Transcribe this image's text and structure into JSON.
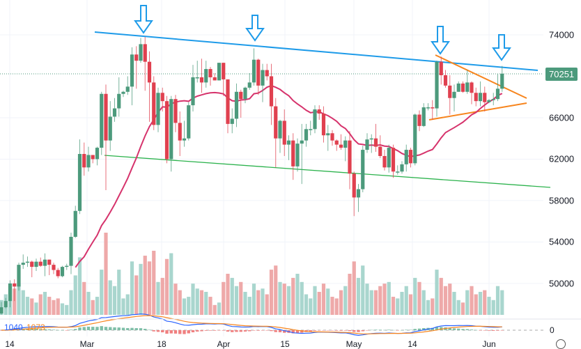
{
  "chart_data": {
    "type": "candlestick",
    "title": "",
    "colors": {
      "up": "#4c9a7c",
      "down": "#e0404f",
      "up_vol": "#a9d6ce",
      "down_vol": "#eea9a9",
      "ma": "#d6336c",
      "trend_top": "#1e9be9",
      "trend_bottom": "#2bb24c",
      "triangle": "#f7851e",
      "macd": "#2962ff",
      "signal": "#f7851e"
    },
    "price_axis": {
      "ticks": [
        "74000",
        "66000",
        "62000",
        "58000",
        "54000",
        "50000"
      ],
      "range": [
        46000,
        76500
      ]
    },
    "last_price": "70251",
    "date_ticks": [
      "14",
      "Mar",
      "18",
      "Apr",
      "15",
      "May",
      "14",
      "Jun"
    ],
    "dates_range": [
      "2024-02-10",
      "2024-06-04"
    ],
    "ma_period": 20,
    "macd": {
      "macd_label": "1040",
      "signal_label": "1073",
      "zero_label": "0"
    },
    "ohlc": [
      [
        47.1,
        48.2,
        47.0,
        47.7
      ],
      [
        47.7,
        48.6,
        47.6,
        48.3
      ],
      [
        48.3,
        50.3,
        47.7,
        50.0
      ],
      [
        50.0,
        50.4,
        48.3,
        49.7
      ],
      [
        49.7,
        52.0,
        49.3,
        51.8
      ],
      [
        51.8,
        52.8,
        51.4,
        52.0
      ],
      [
        52.0,
        52.6,
        51.6,
        52.1
      ],
      [
        52.1,
        52.2,
        50.6,
        51.6
      ],
      [
        51.6,
        52.4,
        51.2,
        52.1
      ],
      [
        52.1,
        52.5,
        51.6,
        51.7
      ],
      [
        51.7,
        52.9,
        50.7,
        52.3
      ],
      [
        52.3,
        52.3,
        50.8,
        51.8
      ],
      [
        51.8,
        52.0,
        50.9,
        51.3
      ],
      [
        51.3,
        51.5,
        50.5,
        50.7
      ],
      [
        50.7,
        51.7,
        50.6,
        51.6
      ],
      [
        51.6,
        51.9,
        51.3,
        51.7
      ],
      [
        51.7,
        54.9,
        50.9,
        54.5
      ],
      [
        54.5,
        57.5,
        54.4,
        57.0
      ],
      [
        57.0,
        63.9,
        56.7,
        62.5
      ],
      [
        62.5,
        63.6,
        60.4,
        61.2
      ],
      [
        61.2,
        63.2,
        60.8,
        62.4
      ],
      [
        62.4,
        62.4,
        61.6,
        62.0
      ],
      [
        62.0,
        63.2,
        61.4,
        63.1
      ],
      [
        63.1,
        68.5,
        62.4,
        68.3
      ],
      [
        68.3,
        69.2,
        59.0,
        63.8
      ],
      [
        63.8,
        67.6,
        62.8,
        66.1
      ],
      [
        66.1,
        67.9,
        65.6,
        66.9
      ],
      [
        66.9,
        69.9,
        66.1,
        68.3
      ],
      [
        68.3,
        68.6,
        68.0,
        68.5
      ],
      [
        68.5,
        70.0,
        68.2,
        69.0
      ],
      [
        69.0,
        72.8,
        67.2,
        72.1
      ],
      [
        72.1,
        72.9,
        68.8,
        71.5
      ],
      [
        71.5,
        73.7,
        71.3,
        73.1
      ],
      [
        73.1,
        73.8,
        68.6,
        71.4
      ],
      [
        71.4,
        72.4,
        65.6,
        69.4
      ],
      [
        69.4,
        70.0,
        64.8,
        65.3
      ],
      [
        65.3,
        68.9,
        64.6,
        68.4
      ],
      [
        68.4,
        68.9,
        66.6,
        67.6
      ],
      [
        67.6,
        68.1,
        61.6,
        62.0
      ],
      [
        62.0,
        68.1,
        60.8,
        67.8
      ],
      [
        67.8,
        68.2,
        64.6,
        65.5
      ],
      [
        65.5,
        66.6,
        62.3,
        63.8
      ],
      [
        63.8,
        65.7,
        63.2,
        64.0
      ],
      [
        64.0,
        67.5,
        63.8,
        67.2
      ],
      [
        67.2,
        71.1,
        66.6,
        69.9
      ],
      [
        69.9,
        71.5,
        69.4,
        69.9
      ],
      [
        69.9,
        71.7,
        68.4,
        69.4
      ],
      [
        69.4,
        71.5,
        68.9,
        70.7
      ],
      [
        70.7,
        70.9,
        69.1,
        69.9
      ],
      [
        69.9,
        70.3,
        69.6,
        69.6
      ],
      [
        69.6,
        71.3,
        69.6,
        71.3
      ],
      [
        71.3,
        71.3,
        68.1,
        69.7
      ],
      [
        69.7,
        69.7,
        64.5,
        65.4
      ],
      [
        65.4,
        66.9,
        64.5,
        65.9
      ],
      [
        65.9,
        69.3,
        65.1,
        68.5
      ],
      [
        68.5,
        68.7,
        66.0,
        67.8
      ],
      [
        67.8,
        69.0,
        67.4,
        68.9
      ],
      [
        68.9,
        70.3,
        68.7,
        69.4
      ],
      [
        69.4,
        72.7,
        69.1,
        71.6
      ],
      [
        71.6,
        71.7,
        68.2,
        69.1
      ],
      [
        69.1,
        71.2,
        67.5,
        70.6
      ],
      [
        70.6,
        71.2,
        69.6,
        70.0
      ],
      [
        70.0,
        71.2,
        65.3,
        67.1
      ],
      [
        67.1,
        67.9,
        61.2,
        64.0
      ],
      [
        64.0,
        65.8,
        62.6,
        65.7
      ],
      [
        65.7,
        66.8,
        62.3,
        63.4
      ],
      [
        63.4,
        64.3,
        61.9,
        63.8
      ],
      [
        63.8,
        64.5,
        60.0,
        61.3
      ],
      [
        61.3,
        64.0,
        60.8,
        63.5
      ],
      [
        63.5,
        65.4,
        59.6,
        63.8
      ],
      [
        63.8,
        65.4,
        63.2,
        64.9
      ],
      [
        64.9,
        65.7,
        64.3,
        64.9
      ],
      [
        64.9,
        67.2,
        64.5,
        66.8
      ],
      [
        66.8,
        67.2,
        65.8,
        66.4
      ],
      [
        66.4,
        67.1,
        63.6,
        64.3
      ],
      [
        64.3,
        65.3,
        62.8,
        64.5
      ],
      [
        64.5,
        64.8,
        63.3,
        63.8
      ],
      [
        63.8,
        63.9,
        62.8,
        63.4
      ],
      [
        63.4,
        64.4,
        62.9,
        63.1
      ],
      [
        63.1,
        64.2,
        61.8,
        63.8
      ],
      [
        63.8,
        64.7,
        59.1,
        60.6
      ],
      [
        60.6,
        60.8,
        56.5,
        58.3
      ],
      [
        58.3,
        59.6,
        56.9,
        59.1
      ],
      [
        59.1,
        63.3,
        58.8,
        62.9
      ],
      [
        62.9,
        64.5,
        62.6,
        63.9
      ],
      [
        63.9,
        64.4,
        62.6,
        64.0
      ],
      [
        64.0,
        65.4,
        62.7,
        63.2
      ],
      [
        63.2,
        64.3,
        62.1,
        62.3
      ],
      [
        62.3,
        62.9,
        60.9,
        61.2
      ],
      [
        61.2,
        63.4,
        60.7,
        63.1
      ],
      [
        63.1,
        63.4,
        60.2,
        60.8
      ],
      [
        60.8,
        61.4,
        60.5,
        60.8
      ],
      [
        60.8,
        61.8,
        60.6,
        61.5
      ],
      [
        61.5,
        63.4,
        60.8,
        62.9
      ],
      [
        62.9,
        63.1,
        61.2,
        61.6
      ],
      [
        61.6,
        66.4,
        61.4,
        66.3
      ],
      [
        66.3,
        66.7,
        64.7,
        65.2
      ],
      [
        65.2,
        67.4,
        65.1,
        67.0
      ],
      [
        67.0,
        67.4,
        66.7,
        67.0
      ],
      [
        67.0,
        67.7,
        65.8,
        66.9
      ],
      [
        66.9,
        71.5,
        66.1,
        71.4
      ],
      [
        71.4,
        71.9,
        69.2,
        70.1
      ],
      [
        70.1,
        70.6,
        68.9,
        69.1
      ],
      [
        69.1,
        70.1,
        66.3,
        67.9
      ],
      [
        67.9,
        69.2,
        66.6,
        68.5
      ],
      [
        68.5,
        69.5,
        68.5,
        69.3
      ],
      [
        69.3,
        69.5,
        68.4,
        68.5
      ],
      [
        68.5,
        70.6,
        68.3,
        69.4
      ],
      [
        69.4,
        69.5,
        67.3,
        68.4
      ],
      [
        68.4,
        68.9,
        67.1,
        67.6
      ],
      [
        67.6,
        69.5,
        67.1,
        68.4
      ],
      [
        68.4,
        69.0,
        66.6,
        67.5
      ],
      [
        67.5,
        67.8,
        67.4,
        67.7
      ],
      [
        67.7,
        68.4,
        67.2,
        67.8
      ],
      [
        67.8,
        70.2,
        67.6,
        68.8
      ],
      [
        68.8,
        71.0,
        68.5,
        70.25
      ]
    ],
    "volume_relative": [
      18,
      25,
      35,
      32,
      38,
      30,
      22,
      20,
      15,
      25,
      28,
      22,
      18,
      20,
      14,
      12,
      30,
      48,
      70,
      40,
      28,
      18,
      22,
      55,
      100,
      42,
      35,
      55,
      20,
      25,
      65,
      48,
      62,
      72,
      65,
      78,
      40,
      45,
      68,
      75,
      38,
      30,
      20,
      22,
      38,
      32,
      30,
      28,
      22,
      12,
      15,
      40,
      50,
      45,
      35,
      40,
      28,
      22,
      38,
      30,
      32,
      25,
      55,
      60,
      40,
      38,
      35,
      45,
      50,
      40,
      25,
      20,
      35,
      28,
      38,
      32,
      22,
      20,
      30,
      35,
      50,
      65,
      45,
      60,
      38,
      30,
      30,
      35,
      38,
      40,
      22,
      20,
      28,
      35,
      25,
      45,
      40,
      30,
      18,
      20,
      55,
      45,
      35,
      38,
      28,
      18,
      15,
      30,
      35,
      25,
      28,
      30,
      22,
      18,
      35,
      30
    ]
  }
}
